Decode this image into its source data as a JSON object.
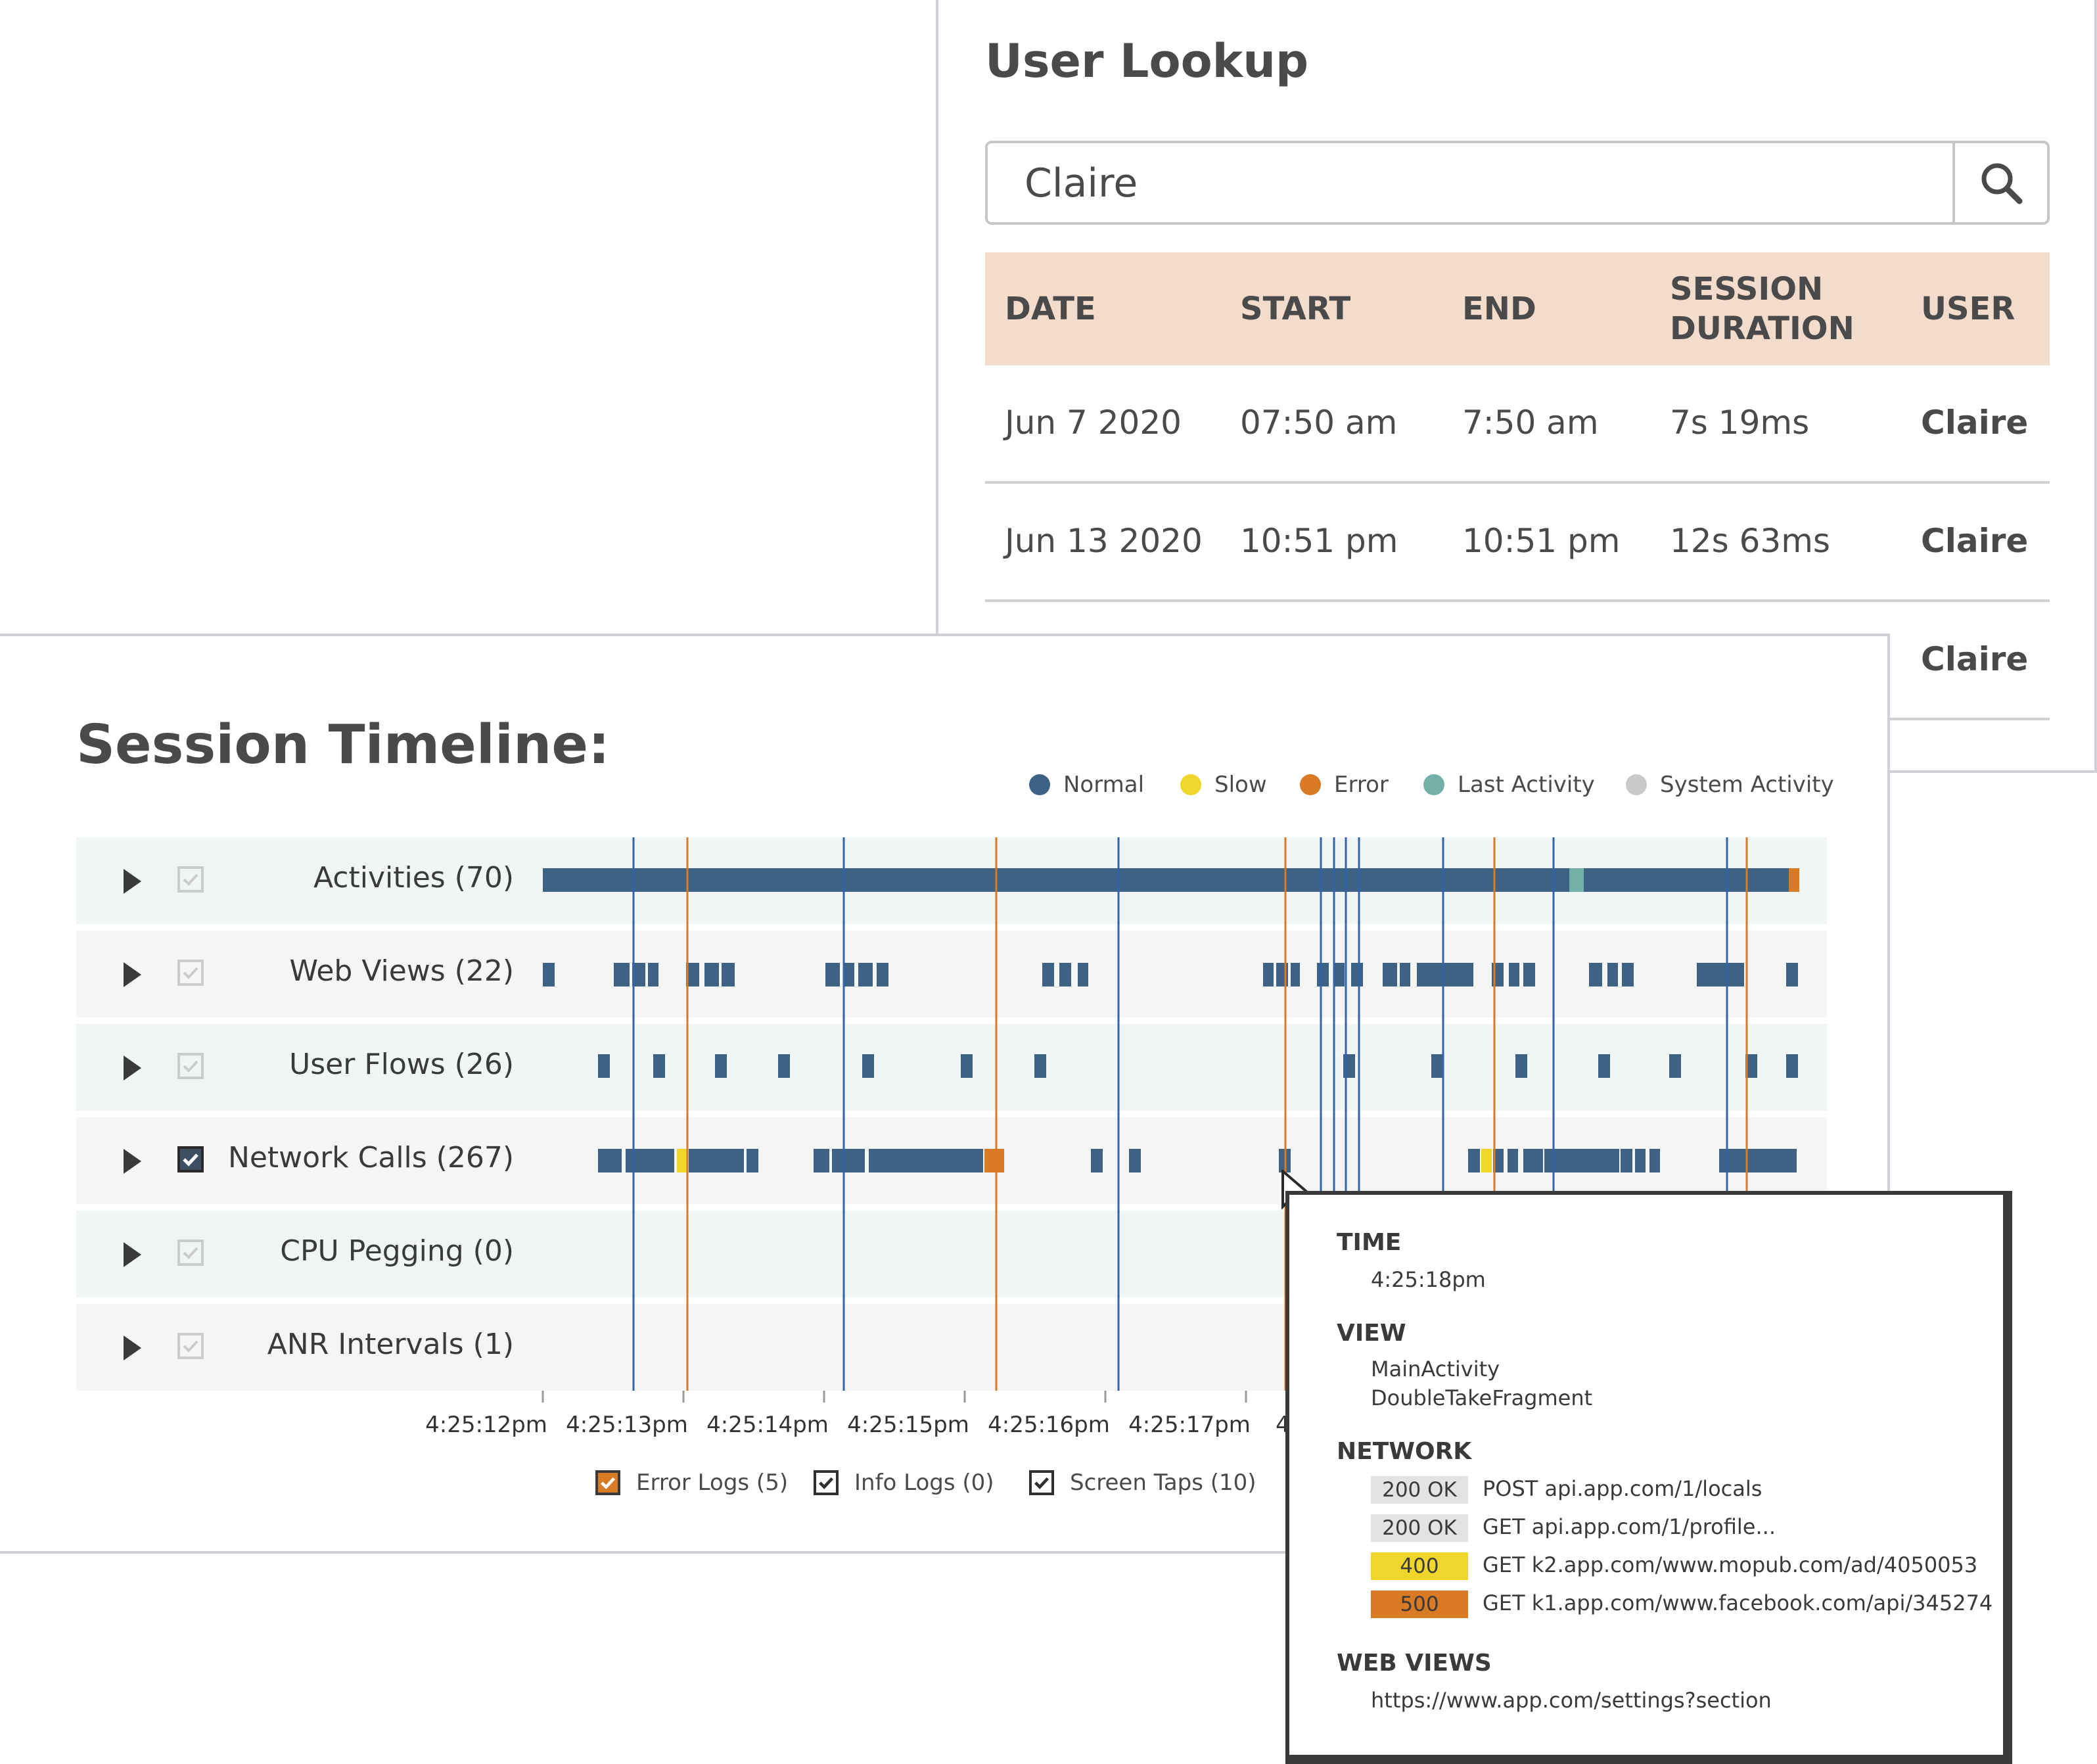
{
  "user_lookup": {
    "title": "User Lookup",
    "search": {
      "value": "Claire",
      "icon": "search-icon"
    },
    "columns": [
      "DATE",
      "START",
      "END",
      "SESSION DURATION",
      "USER"
    ],
    "rows": [
      {
        "date": "Jun 7 2020",
        "start": "07:50 am",
        "end": "7:50 am",
        "duration": "7s 19ms",
        "user": "Claire"
      },
      {
        "date": "Jun 13 2020",
        "start": "10:51 pm",
        "end": "10:51 pm",
        "duration": "12s 63ms",
        "user": "Claire"
      },
      {
        "date": "",
        "start": "",
        "end": "",
        "duration": "",
        "user": "Claire"
      }
    ]
  },
  "timeline": {
    "title": "Session Timeline:",
    "legend": [
      {
        "label": "Normal",
        "color": "#3d6284"
      },
      {
        "label": "Slow",
        "color": "#f0d62a"
      },
      {
        "label": "Error",
        "color": "#d97a25"
      },
      {
        "label": "Last Activity",
        "color": "#72b0a8"
      },
      {
        "label": "System Activity",
        "color": "#c9c9c9"
      }
    ],
    "rows": [
      {
        "label": "Activities (70)",
        "checked": false
      },
      {
        "label": "Web Views (22)",
        "checked": false
      },
      {
        "label": "User Flows (26)",
        "checked": false
      },
      {
        "label": "Network Calls (267)",
        "checked": true
      },
      {
        "label": "CPU Pegging (0)",
        "checked": false
      },
      {
        "label": "ANR Intervals (1)",
        "checked": false
      }
    ],
    "axis_ticks": [
      "4:25:12pm",
      "4:25:13pm",
      "4:25:14pm",
      "4:25:15pm",
      "4:25:16pm",
      "4:25:17pm",
      "4"
    ],
    "filters": [
      {
        "label": "Error Logs (5)",
        "checked": true,
        "style": "orange"
      },
      {
        "label": "Info Logs (0)",
        "checked": true,
        "style": "plain"
      },
      {
        "label": "Screen Taps (10)",
        "checked": true,
        "style": "plain"
      }
    ]
  },
  "tooltip": {
    "time_heading": "TIME",
    "time": "4:25:18pm",
    "view_heading": "VIEW",
    "views": [
      "MainActivity",
      "DoubleTakeFragment"
    ],
    "network_heading": "NETWORK",
    "network": [
      {
        "status": "200 OK",
        "color": "#e3e3e3",
        "url": "POST api.app.com/1/locals"
      },
      {
        "status": "200 OK",
        "color": "#e3e3e3",
        "url": "GET api.app.com/1/profile..."
      },
      {
        "status": "400",
        "color": "#f0d62a",
        "url": "GET k2.app.com/www.mopub.com/ad/4050053"
      },
      {
        "status": "500",
        "color": "#d97a25",
        "url": "GET k1.app.com/www.facebook.com/api/345274"
      }
    ],
    "webviews_heading": "WEB VIEWS",
    "webview": "https://www.app.com/settings?section"
  }
}
